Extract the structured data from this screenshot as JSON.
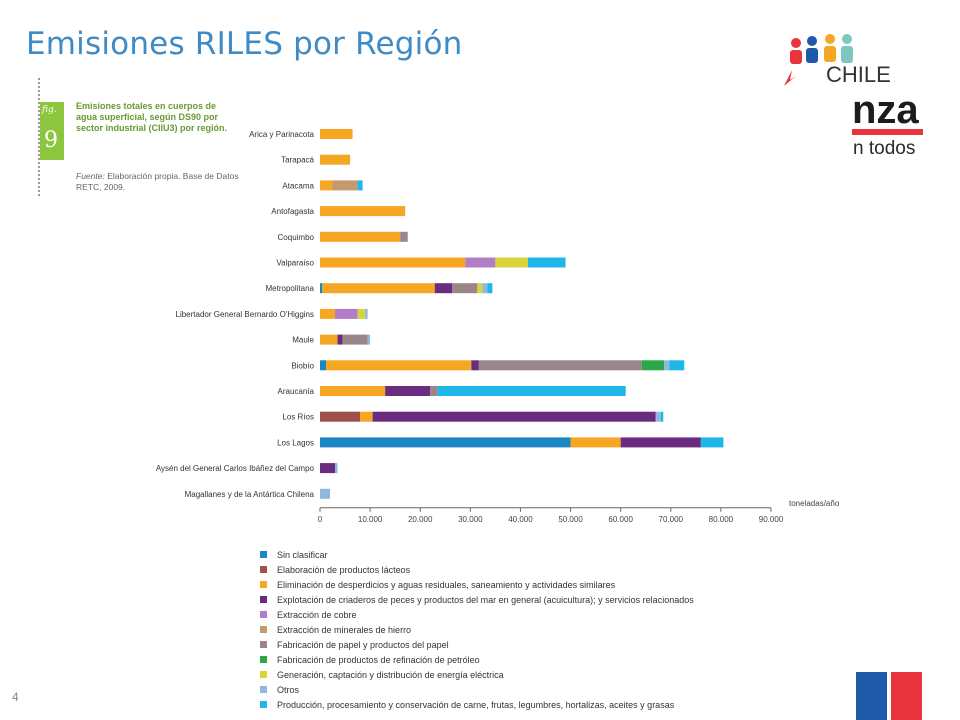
{
  "slide": {
    "title": "Emisiones RILES por Región",
    "page_number": "4"
  },
  "logo": {
    "line1": "CHILE",
    "line2": "nza",
    "line3": "n todos"
  },
  "figure": {
    "label": "fig.",
    "number": "9",
    "caption": "Emisiones totales en cuerpos de agua superficial, según DS90 por sector industrial (CIIU3) por región.",
    "source_label": "Fuente:",
    "source_text": "Elaboración propia. Base de Datos RETC, 2009."
  },
  "colors": {
    "accent_title": "#3e8bc6",
    "flag_blue": "#1e5aa8",
    "flag_red": "#e8343c",
    "figure_green": "#8cc63f"
  },
  "chart_data": {
    "type": "bar",
    "orientation": "horizontal",
    "stacked": true,
    "unit_label": "toneladas/año",
    "xlim": [
      0,
      90000
    ],
    "x_ticks": [
      "0",
      "10.000",
      "20.000",
      "30.000",
      "40.000",
      "50.000",
      "60.000",
      "70.000",
      "80.000",
      "90.000"
    ],
    "x_tick_values": [
      0,
      10000,
      20000,
      30000,
      40000,
      50000,
      60000,
      70000,
      80000,
      90000
    ],
    "grid": false,
    "legend_position": "bottom",
    "categories": [
      "Arica y Parinacota",
      "Tarapacá",
      "Atacama",
      "Antofagasta",
      "Coquimbo",
      "Valparaíso",
      "Metropolitana",
      "Libertador General Bernardo O'Higgins",
      "Maule",
      "Biobío",
      "Araucanía",
      "Los Ríos",
      "Los Lagos",
      "Aysén del General Carlos Ibáñez del Campo",
      "Magallanes y de la Antártica Chilena"
    ],
    "series": [
      {
        "name": "Sin clasificar",
        "color": "#1a86c2",
        "values": [
          0,
          0,
          0,
          0,
          0,
          0,
          400,
          0,
          0,
          1200,
          0,
          0,
          50000,
          0,
          0
        ]
      },
      {
        "name": "Elaboración de productos lácteos",
        "color": "#a0524a",
        "values": [
          0,
          0,
          0,
          0,
          0,
          0,
          0,
          0,
          0,
          0,
          0,
          8000,
          0,
          0,
          0
        ]
      },
      {
        "name": "Eliminación de desperdicios y aguas residuales, saneamiento y actividades similares",
        "color": "#f5a623",
        "values": [
          6500,
          6000,
          2500,
          17000,
          16000,
          29000,
          22500,
          3000,
          3500,
          29000,
          13000,
          2500,
          10000,
          0,
          0
        ]
      },
      {
        "name": "Explotación de criaderos de peces y productos del mar en general (acuicultura); y servicios relacionados",
        "color": "#6a2c7e",
        "values": [
          0,
          0,
          0,
          0,
          0,
          0,
          3500,
          0,
          1000,
          1500,
          9000,
          56500,
          16000,
          3000,
          0
        ]
      },
      {
        "name": "Extracción de cobre",
        "color": "#b27cc6",
        "values": [
          0,
          0,
          0,
          0,
          0,
          6000,
          0,
          4500,
          0,
          0,
          0,
          0,
          0,
          0,
          0
        ]
      },
      {
        "name": "Extracción de minerales de hierro",
        "color": "#c49a6c",
        "values": [
          0,
          0,
          5000,
          0,
          0,
          0,
          0,
          0,
          0,
          0,
          0,
          0,
          0,
          0,
          0
        ]
      },
      {
        "name": "Fabricación de papel y productos del papel",
        "color": "#9a8588",
        "values": [
          0,
          0,
          0,
          0,
          1500,
          0,
          5000,
          0,
          5000,
          32500,
          1500,
          0,
          0,
          0,
          0
        ]
      },
      {
        "name": "Fabricación de productos de refinación de petróleo",
        "color": "#2aa84a",
        "values": [
          0,
          0,
          0,
          0,
          0,
          0,
          0,
          0,
          0,
          4500,
          0,
          0,
          0,
          0,
          0
        ]
      },
      {
        "name": "Generación, captación y distribución de energía eléctrica",
        "color": "#d9d43a",
        "values": [
          0,
          0,
          0,
          0,
          0,
          6500,
          1000,
          1500,
          0,
          0,
          0,
          0,
          0,
          0,
          0
        ]
      },
      {
        "name": "Otros",
        "color": "#8fb8dc",
        "values": [
          0,
          0,
          0,
          0,
          0,
          0,
          1000,
          500,
          500,
          1000,
          0,
          1000,
          0,
          500,
          2000
        ]
      },
      {
        "name": "Producción, procesamiento y conservación de carne, frutas, legumbres, hortalizas, aceites y grasas",
        "color": "#1fb6e8",
        "values": [
          0,
          0,
          1000,
          0,
          0,
          7500,
          1000,
          0,
          0,
          3000,
          37500,
          500,
          4500,
          0,
          0
        ]
      }
    ]
  }
}
